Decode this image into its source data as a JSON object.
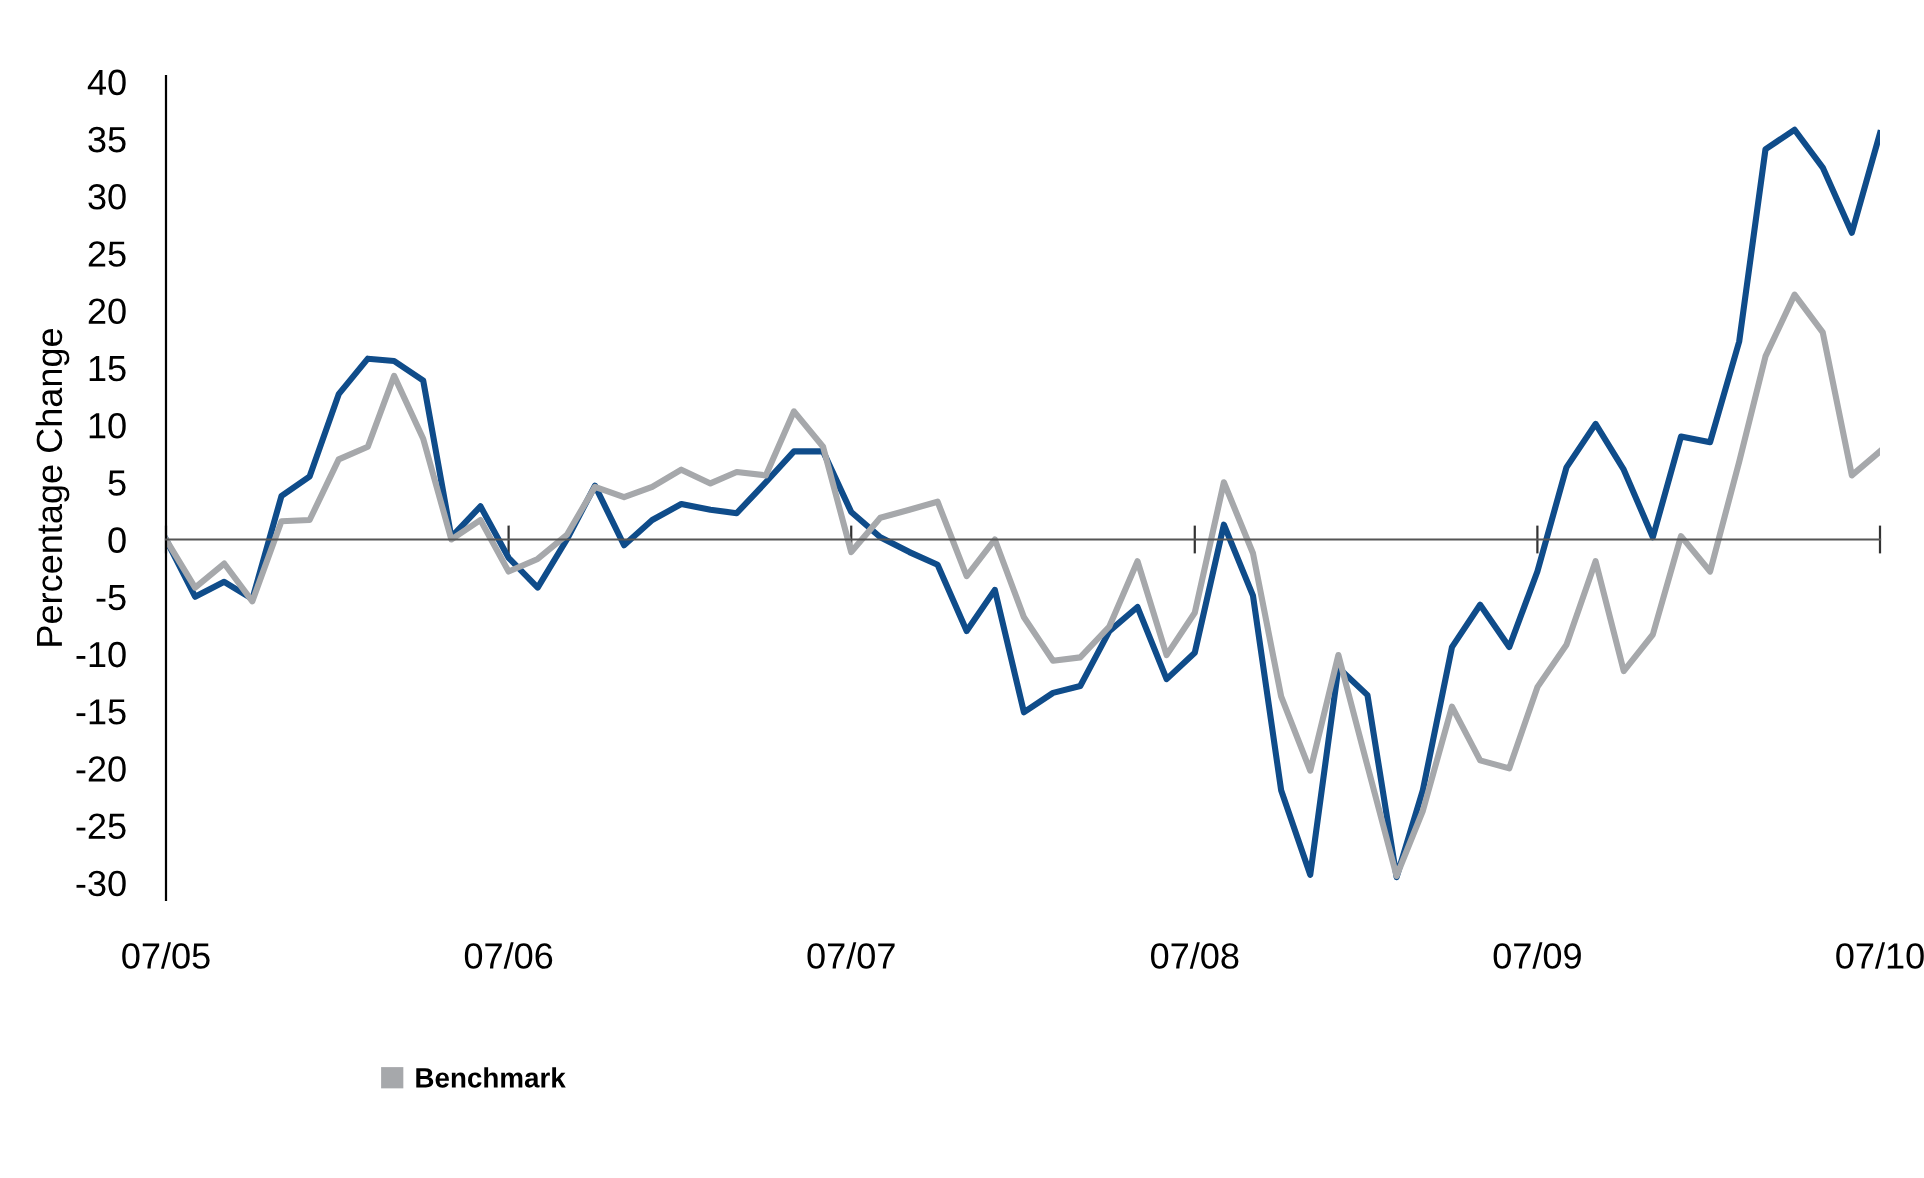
{
  "chart_data": {
    "type": "line",
    "ylabel": "Percentage Change",
    "x": [
      "2005-07",
      "2005-08",
      "2005-09",
      "2005-10",
      "2005-11",
      "2005-12",
      "2006-01",
      "2006-02",
      "2006-03",
      "2006-04",
      "2006-05",
      "2006-06",
      "2006-07",
      "2006-08",
      "2006-09",
      "2006-10",
      "2006-11",
      "2006-12",
      "2007-01",
      "2007-02",
      "2007-03",
      "2007-04",
      "2007-05",
      "2007-06",
      "2007-07",
      "2007-08",
      "2007-09",
      "2007-10",
      "2007-11",
      "2007-12",
      "2008-01",
      "2008-02",
      "2008-03",
      "2008-04",
      "2008-05",
      "2008-06",
      "2008-07",
      "2008-08",
      "2008-09",
      "2008-10",
      "2008-11",
      "2008-12",
      "2009-01",
      "2009-02",
      "2009-03",
      "2009-04",
      "2009-05",
      "2009-06",
      "2009-07",
      "2009-08",
      "2009-09",
      "2009-10",
      "2009-11",
      "2009-12",
      "2010-01",
      "2010-02",
      "2010-03",
      "2010-04",
      "2010-05",
      "2010-06",
      "2010-07"
    ],
    "series": [
      {
        "color": "#0f4c8a",
        "values": [
          0,
          -5.0,
          -3.7,
          -5.2,
          3.8,
          5.5,
          12.7,
          15.8,
          15.6,
          13.9,
          0.2,
          2.9,
          -1.6,
          -4.2,
          0,
          4.7,
          -0.5,
          1.7,
          3.1,
          2.6,
          2.3,
          5.0,
          7.7,
          7.7,
          2.4,
          0.2,
          -1.1,
          -2.2,
          -8.0,
          -4.4,
          -15.1,
          -13.4,
          -12.8,
          -8.0,
          -5.9,
          -12.2,
          -9.9,
          1.3,
          -4.9,
          -21.9,
          -29.3,
          -11.2,
          -13.6,
          -29.5,
          -21.9,
          -9.4,
          -5.7,
          -9.4,
          -2.8,
          6.3,
          10.1,
          6.1,
          0.2,
          9.0,
          8.5,
          17.3,
          34.1,
          35.8,
          32.5,
          26.8,
          35.5
        ]
      },
      {
        "name": "Benchmark",
        "color": "#a6a8ab",
        "values": [
          0,
          -4.2,
          -2.1,
          -5.4,
          1.6,
          1.7,
          7.0,
          8.1,
          14.3,
          8.8,
          0,
          1.7,
          -2.8,
          -1.7,
          0.4,
          4.6,
          3.7,
          4.6,
          6.1,
          4.9,
          5.9,
          5.6,
          11.2,
          8.1,
          -1.1,
          1.9,
          2.6,
          3.3,
          -3.2,
          0,
          -6.8,
          -10.6,
          -10.3,
          -7.6,
          -1.9,
          -10.1,
          -6.4,
          5.0,
          -1.2,
          -13.7,
          -20.2,
          -10.1,
          -19.8,
          -29.4,
          -23.7,
          -14.6,
          -19.3,
          -20.0,
          -12.9,
          -9.2,
          -1.9,
          -11.5,
          -8.3,
          0.3,
          -2.8,
          6.8,
          16.0,
          21.4,
          18.1,
          5.6,
          7.7
        ]
      }
    ],
    "xlim": [
      "2005-07",
      "2010-07"
    ],
    "xticks": [
      {
        "value": "2005-07",
        "label": "07/05"
      },
      {
        "value": "2006-07",
        "label": "07/06"
      },
      {
        "value": "2007-07",
        "label": "07/07"
      },
      {
        "value": "2008-07",
        "label": "07/08"
      },
      {
        "value": "2009-07",
        "label": "07/09"
      },
      {
        "value": "2010-07",
        "label": "07/10"
      }
    ],
    "ylim": [
      -31.5,
      40.5
    ],
    "yticks": [
      -30,
      -25,
      -20,
      -15,
      -10,
      -5,
      0,
      5,
      10,
      15,
      20,
      25,
      30,
      35,
      40
    ],
    "legend": "bottom",
    "marker": "none",
    "line_style": "solid"
  }
}
